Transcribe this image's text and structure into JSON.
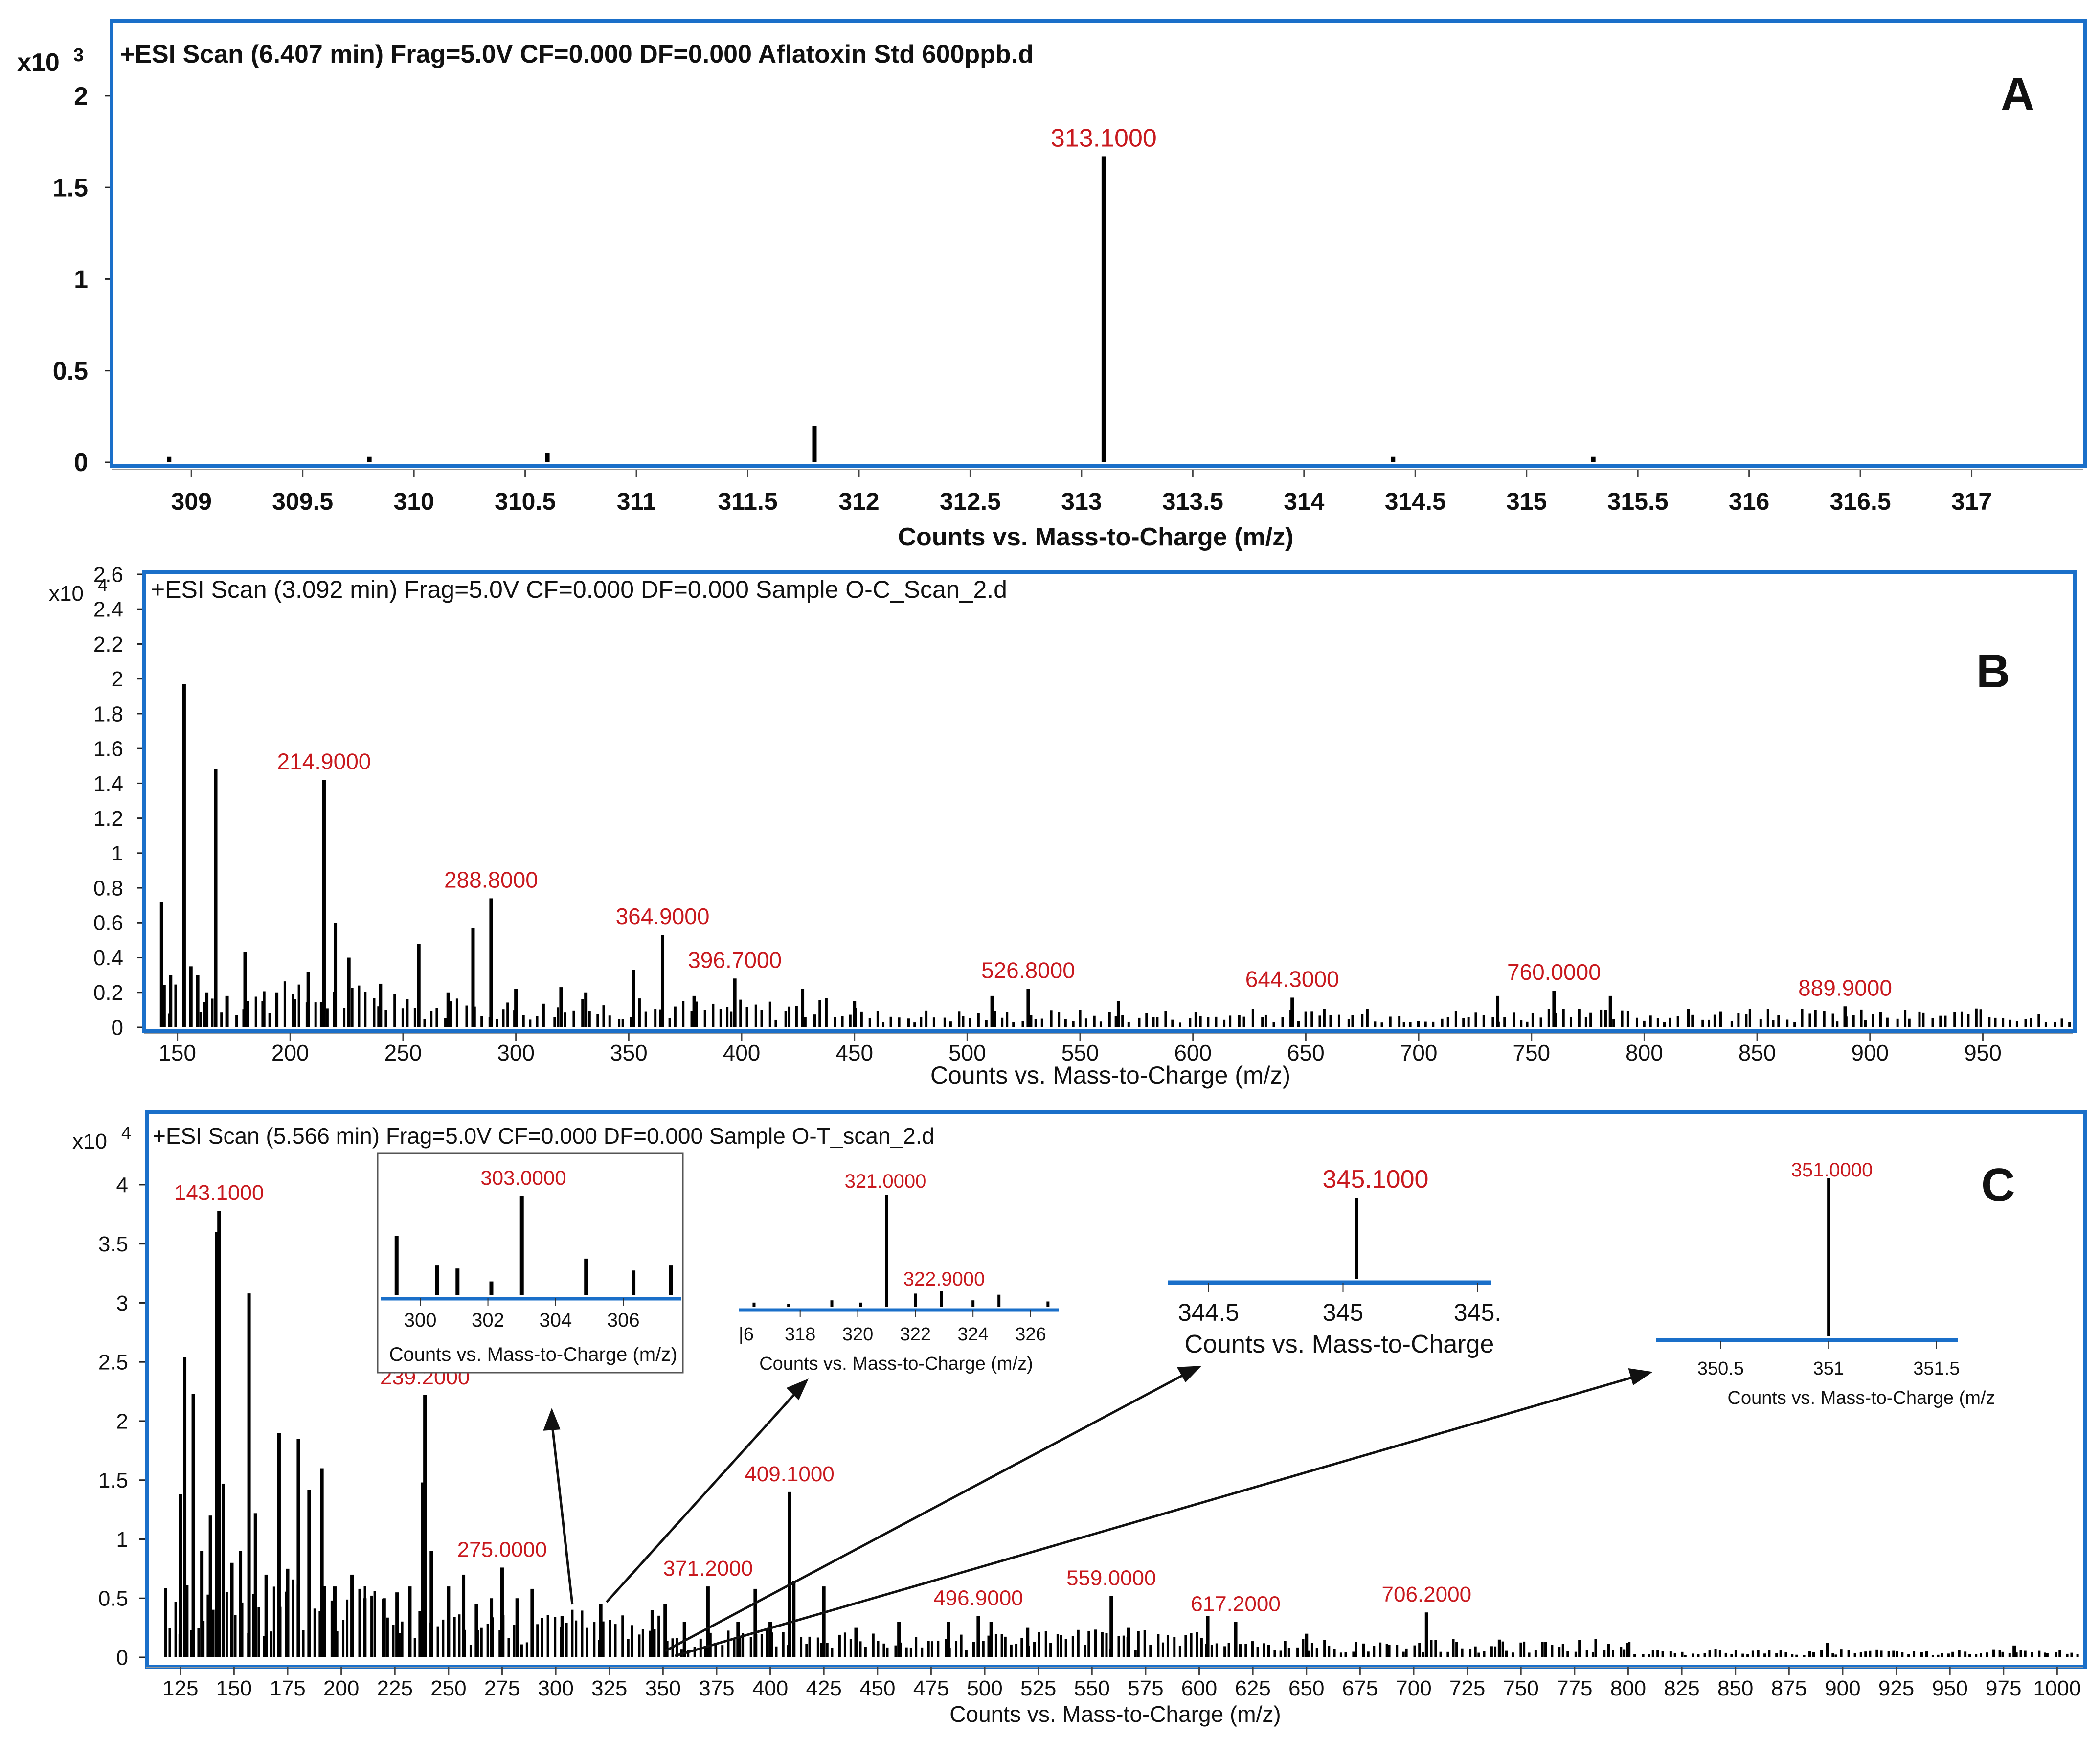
{
  "chart_data": [
    {
      "id": "A",
      "type": "bar",
      "title": "+ESI Scan (6.407 min) Frag=5.0V CF=0.000 DF=0.000 Aflatoxin Std 600ppb.d",
      "panel_label": "A",
      "multiplier": "x10",
      "exponent": "3",
      "xlabel": "Counts vs. Mass-to-Charge (m/z)",
      "ylabel": "",
      "xlim": [
        308.65,
        317.5
      ],
      "ylim": [
        0,
        2.4
      ],
      "xticks": [
        309,
        309.5,
        310,
        310.5,
        311,
        311.5,
        312,
        312.5,
        313,
        313.5,
        314,
        314.5,
        315,
        315.5,
        316,
        316.5,
        317
      ],
      "yticks": [
        0,
        0.5,
        1,
        1.5,
        2
      ],
      "peaks": [
        {
          "mz": 308.9,
          "intensity": 0.03
        },
        {
          "mz": 309.8,
          "intensity": 0.03
        },
        {
          "mz": 310.6,
          "intensity": 0.05
        },
        {
          "mz": 311.8,
          "intensity": 0.2
        },
        {
          "mz": 313.1,
          "intensity": 1.67
        },
        {
          "mz": 314.4,
          "intensity": 0.03
        },
        {
          "mz": 315.3,
          "intensity": 0.03
        }
      ],
      "annotations": [
        {
          "mz": 313.1,
          "intensity": 1.67,
          "label": "313.1000"
        }
      ]
    },
    {
      "id": "B",
      "type": "bar",
      "title": "+ESI Scan (3.092 min) Frag=5.0V CF=0.000 DF=0.000 Sample O-C_Scan_2.d",
      "panel_label": "B",
      "multiplier": "x10",
      "exponent": "4",
      "xlabel": "Counts vs. Mass-to-Charge (m/z)",
      "ylabel": "",
      "xlim": [
        136,
        990
      ],
      "ylim": [
        0,
        2.6
      ],
      "xticks": [
        150,
        200,
        250,
        300,
        350,
        400,
        450,
        500,
        550,
        600,
        650,
        700,
        750,
        800,
        850,
        900,
        950
      ],
      "yticks": [
        0,
        0.2,
        0.4,
        0.6,
        0.8,
        1,
        1.2,
        1.4,
        1.6,
        1.8,
        2,
        2.2,
        2.4,
        2.6
      ],
      "peaks": [
        {
          "mz": 143,
          "intensity": 0.72
        },
        {
          "mz": 147,
          "intensity": 0.3
        },
        {
          "mz": 153,
          "intensity": 1.97
        },
        {
          "mz": 156,
          "intensity": 0.35
        },
        {
          "mz": 159,
          "intensity": 0.3
        },
        {
          "mz": 163,
          "intensity": 0.2
        },
        {
          "mz": 167,
          "intensity": 1.48
        },
        {
          "mz": 172,
          "intensity": 0.18
        },
        {
          "mz": 180,
          "intensity": 0.43
        },
        {
          "mz": 188,
          "intensity": 0.15
        },
        {
          "mz": 194,
          "intensity": 0.2
        },
        {
          "mz": 202,
          "intensity": 0.16
        },
        {
          "mz": 208,
          "intensity": 0.32
        },
        {
          "mz": 215,
          "intensity": 1.42
        },
        {
          "mz": 220,
          "intensity": 0.6
        },
        {
          "mz": 226,
          "intensity": 0.4
        },
        {
          "mz": 240,
          "intensity": 0.25
        },
        {
          "mz": 257,
          "intensity": 0.48
        },
        {
          "mz": 270,
          "intensity": 0.2
        },
        {
          "mz": 281,
          "intensity": 0.57
        },
        {
          "mz": 289,
          "intensity": 0.74
        },
        {
          "mz": 300,
          "intensity": 0.22
        },
        {
          "mz": 320,
          "intensity": 0.23
        },
        {
          "mz": 331,
          "intensity": 0.2
        },
        {
          "mz": 352,
          "intensity": 0.33
        },
        {
          "mz": 365,
          "intensity": 0.53
        },
        {
          "mz": 379,
          "intensity": 0.18
        },
        {
          "mz": 397,
          "intensity": 0.28
        },
        {
          "mz": 427,
          "intensity": 0.22
        },
        {
          "mz": 450,
          "intensity": 0.15
        },
        {
          "mz": 511,
          "intensity": 0.18
        },
        {
          "mz": 527,
          "intensity": 0.22
        },
        {
          "mz": 567,
          "intensity": 0.15
        },
        {
          "mz": 644,
          "intensity": 0.17
        },
        {
          "mz": 735,
          "intensity": 0.18
        },
        {
          "mz": 760,
          "intensity": 0.21
        },
        {
          "mz": 785,
          "intensity": 0.18
        },
        {
          "mz": 889,
          "intensity": 0.12
        }
      ],
      "annotations": [
        {
          "mz": 215,
          "intensity": 1.42,
          "label": "214.9000"
        },
        {
          "mz": 289,
          "intensity": 0.74,
          "label": "288.8000"
        },
        {
          "mz": 365,
          "intensity": 0.53,
          "label": "364.9000"
        },
        {
          "mz": 397,
          "intensity": 0.28,
          "label": "396.7000"
        },
        {
          "mz": 527,
          "intensity": 0.22,
          "label": "526.8000"
        },
        {
          "mz": 644,
          "intensity": 0.17,
          "label": "644.3000"
        },
        {
          "mz": 760,
          "intensity": 0.21,
          "label": "760.0000"
        },
        {
          "mz": 889,
          "intensity": 0.12,
          "label": "889.9000"
        }
      ]
    },
    {
      "id": "C",
      "type": "bar",
      "title": "+ESI Scan (5.566 min) Frag=5.0V CF=0.000 DF=0.000 Sample O-T_scan_2.d",
      "panel_label": "C",
      "multiplier": "x10",
      "exponent": "4",
      "xlabel": "Counts vs. Mass-to-Charge (m/z)",
      "ylabel": "",
      "xlim": [
        110,
        1012
      ],
      "ylim": [
        0,
        4.6
      ],
      "xticks": [
        125,
        150,
        175,
        200,
        225,
        250,
        275,
        300,
        325,
        350,
        375,
        400,
        425,
        450,
        475,
        500,
        525,
        550,
        575,
        600,
        625,
        650,
        675,
        700,
        725,
        750,
        775,
        800,
        825,
        850,
        875,
        900,
        925,
        950,
        975,
        1000
      ],
      "yticks": [
        0,
        0.5,
        1,
        1.5,
        2,
        2.5,
        3,
        3.5,
        4
      ],
      "peaks": [
        {
          "mz": 125,
          "intensity": 1.38
        },
        {
          "mz": 127,
          "intensity": 2.54
        },
        {
          "mz": 131,
          "intensity": 2.23
        },
        {
          "mz": 135,
          "intensity": 0.9
        },
        {
          "mz": 139,
          "intensity": 1.2
        },
        {
          "mz": 142,
          "intensity": 3.6
        },
        {
          "mz": 143,
          "intensity": 3.78
        },
        {
          "mz": 145,
          "intensity": 1.47
        },
        {
          "mz": 149,
          "intensity": 0.8
        },
        {
          "mz": 153,
          "intensity": 0.9
        },
        {
          "mz": 157,
          "intensity": 3.08
        },
        {
          "mz": 160,
          "intensity": 1.22
        },
        {
          "mz": 165,
          "intensity": 0.7
        },
        {
          "mz": 171,
          "intensity": 1.9
        },
        {
          "mz": 175,
          "intensity": 0.75
        },
        {
          "mz": 180,
          "intensity": 1.85
        },
        {
          "mz": 185,
          "intensity": 1.42
        },
        {
          "mz": 191,
          "intensity": 1.6
        },
        {
          "mz": 197,
          "intensity": 0.6
        },
        {
          "mz": 205,
          "intensity": 0.7
        },
        {
          "mz": 211,
          "intensity": 0.5
        },
        {
          "mz": 220,
          "intensity": 0.5
        },
        {
          "mz": 226,
          "intensity": 0.55
        },
        {
          "mz": 232,
          "intensity": 0.6
        },
        {
          "mz": 238,
          "intensity": 1.48
        },
        {
          "mz": 239,
          "intensity": 2.22
        },
        {
          "mz": 242,
          "intensity": 0.9
        },
        {
          "mz": 250,
          "intensity": 0.6
        },
        {
          "mz": 257,
          "intensity": 0.7
        },
        {
          "mz": 263,
          "intensity": 0.45
        },
        {
          "mz": 270,
          "intensity": 0.5
        },
        {
          "mz": 275,
          "intensity": 0.76
        },
        {
          "mz": 282,
          "intensity": 0.5
        },
        {
          "mz": 289,
          "intensity": 0.58
        },
        {
          "mz": 303,
          "intensity": 0.35
        },
        {
          "mz": 321,
          "intensity": 0.45
        },
        {
          "mz": 345,
          "intensity": 0.4
        },
        {
          "mz": 351,
          "intensity": 0.45
        },
        {
          "mz": 360,
          "intensity": 0.3
        },
        {
          "mz": 371,
          "intensity": 0.6
        },
        {
          "mz": 385,
          "intensity": 0.3
        },
        {
          "mz": 393,
          "intensity": 0.58
        },
        {
          "mz": 400,
          "intensity": 0.3
        },
        {
          "mz": 409,
          "intensity": 1.4
        },
        {
          "mz": 411,
          "intensity": 0.65
        },
        {
          "mz": 425,
          "intensity": 0.6
        },
        {
          "mz": 440,
          "intensity": 0.25
        },
        {
          "mz": 460,
          "intensity": 0.3
        },
        {
          "mz": 483,
          "intensity": 0.3
        },
        {
          "mz": 497,
          "intensity": 0.35
        },
        {
          "mz": 503,
          "intensity": 0.3
        },
        {
          "mz": 520,
          "intensity": 0.25
        },
        {
          "mz": 559,
          "intensity": 0.52
        },
        {
          "mz": 567,
          "intensity": 0.25
        },
        {
          "mz": 604,
          "intensity": 0.35
        },
        {
          "mz": 617,
          "intensity": 0.3
        },
        {
          "mz": 650,
          "intensity": 0.2
        },
        {
          "mz": 706,
          "intensity": 0.38
        },
        {
          "mz": 740,
          "intensity": 0.15
        },
        {
          "mz": 800,
          "intensity": 0.12
        },
        {
          "mz": 893,
          "intensity": 0.12
        },
        {
          "mz": 980,
          "intensity": 0.1
        }
      ],
      "annotations": [
        {
          "mz": 143,
          "intensity": 3.78,
          "label": "143.1000"
        },
        {
          "mz": 239,
          "intensity": 2.22,
          "label": "239.2000"
        },
        {
          "mz": 275,
          "intensity": 0.76,
          "label": "275.0000"
        },
        {
          "mz": 371,
          "intensity": 0.6,
          "label": "371.2000"
        },
        {
          "mz": 409,
          "intensity": 1.4,
          "label": "409.1000"
        },
        {
          "mz": 497,
          "intensity": 0.35,
          "label": "496.9000"
        },
        {
          "mz": 559,
          "intensity": 0.52,
          "label": "559.0000"
        },
        {
          "mz": 617,
          "intensity": 0.3,
          "label": "617.2000"
        },
        {
          "mz": 706,
          "intensity": 0.38,
          "label": "706.2000"
        }
      ],
      "insets": [
        {
          "id": "inset-303",
          "xlabel": "Counts vs. Mass-to-Charge (m/z)",
          "xlim": [
            299,
            307.6
          ],
          "xticks": [
            300,
            302,
            304,
            306
          ],
          "ymax": 1,
          "peaks": [
            {
              "mz": 299.3,
              "intensity": 0.6
            },
            {
              "mz": 300.5,
              "intensity": 0.3
            },
            {
              "mz": 301.1,
              "intensity": 0.27
            },
            {
              "mz": 302.1,
              "intensity": 0.14
            },
            {
              "mz": 303.0,
              "intensity": 1.0
            },
            {
              "mz": 304.9,
              "intensity": 0.37
            },
            {
              "mz": 306.3,
              "intensity": 0.25
            },
            {
              "mz": 307.4,
              "intensity": 0.3
            }
          ],
          "annotation": {
            "mz": 303.0,
            "label": "303.0000"
          }
        },
        {
          "id": "inset-321",
          "xlabel": "Counts vs. Mass-to-Charge (m/z)",
          "tick_prefix": "|6",
          "xlim": [
            315.9,
            326.9
          ],
          "xticks": [
            318,
            320,
            322,
            324,
            326
          ],
          "ymax": 1,
          "peaks": [
            {
              "mz": 316.4,
              "intensity": 0.04
            },
            {
              "mz": 317.6,
              "intensity": 0.03
            },
            {
              "mz": 319.1,
              "intensity": 0.06
            },
            {
              "mz": 320.1,
              "intensity": 0.04
            },
            {
              "mz": 321.0,
              "intensity": 1.0
            },
            {
              "mz": 322.0,
              "intensity": 0.12
            },
            {
              "mz": 322.9,
              "intensity": 0.14
            },
            {
              "mz": 324.0,
              "intensity": 0.06
            },
            {
              "mz": 324.9,
              "intensity": 0.11
            },
            {
              "mz": 326.6,
              "intensity": 0.05
            }
          ],
          "annotation": {
            "mz": 322.9,
            "label": "322.9000"
          },
          "annotation_main": {
            "mz": 321.0,
            "label": "321.0000"
          }
        },
        {
          "id": "inset-345",
          "xlabel": "Counts vs. Mass-to-Charge",
          "tick_labels": [
            "344.5",
            "345",
            "345."
          ],
          "tick_values": [
            344.55,
            345.05,
            345.55
          ],
          "xlim": [
            344.4,
            345.6
          ],
          "ymax": 1,
          "peaks": [
            {
              "mz": 345.1,
              "intensity": 1.0
            }
          ],
          "annotation": {
            "mz": 345.1,
            "label": "345.1000"
          }
        },
        {
          "id": "inset-351",
          "xlabel": "Counts vs. Mass-to-Charge (m/z",
          "tick_labels": [
            "350.5",
            "351",
            "351.5"
          ],
          "tick_values": [
            350.5,
            351.0,
            351.5
          ],
          "xlim": [
            350.2,
            351.6
          ],
          "ymax": 1,
          "peaks": [
            {
              "mz": 351.0,
              "intensity": 1.0
            }
          ],
          "annotation": {
            "mz": 351.0,
            "label": "351.0000"
          }
        }
      ]
    }
  ],
  "colors": {
    "frame": "#1a6fc9",
    "peak": "#000000",
    "annotation": "#c8191e",
    "text": "#111111",
    "axis": "#222222"
  }
}
